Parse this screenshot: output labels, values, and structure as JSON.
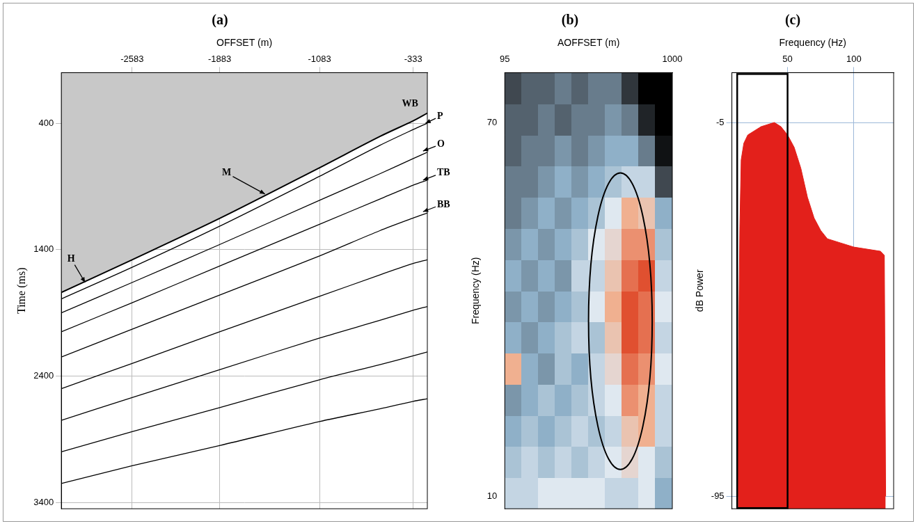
{
  "chart_data": [
    {
      "type": "line",
      "title": "(a)",
      "x_label": "OFFSET (m)",
      "y_label": "Time (ms)",
      "x": [
        -3150,
        -2583,
        -1883,
        -1083,
        -600,
        -333,
        -220
      ],
      "series": [
        {
          "values": [
            1739,
            1480,
            1153,
            752,
            505,
            381,
            320
          ]
        },
        {
          "values": [
            1790,
            1540,
            1215,
            820,
            575,
            450,
            400
          ]
        },
        {
          "values": [
            1900,
            1660,
            1360,
            1010,
            800,
            680,
            630
          ]
        },
        {
          "values": [
            2050,
            1820,
            1530,
            1200,
            1000,
            890,
            850
          ]
        },
        {
          "values": [
            2250,
            2030,
            1760,
            1450,
            1250,
            1150,
            1110
          ]
        },
        {
          "values": [
            2500,
            2300,
            2050,
            1770,
            1600,
            1510,
            1480
          ]
        },
        {
          "values": [
            2750,
            2570,
            2350,
            2100,
            1960,
            1880,
            1850
          ]
        },
        {
          "values": [
            3000,
            2840,
            2650,
            2430,
            2310,
            2240,
            2210
          ]
        },
        {
          "values": [
            3250,
            3110,
            2950,
            2760,
            2660,
            2600,
            2580
          ]
        }
      ],
      "color": "#000000",
      "xlim": [
        -3150,
        -220
      ],
      "xticks": [
        -2583,
        -1883,
        -1083,
        -333
      ],
      "ylim": [
        3450,
        0
      ],
      "yticks": [
        400,
        1400,
        2400,
        3400
      ],
      "grid": true,
      "annotations": [
        {
          "text": "WB",
          "x": -260,
          "y": 340
        },
        {
          "text": "P",
          "x": -240,
          "y": 400
        },
        {
          "text": "M",
          "x": -1520,
          "y": 960
        },
        {
          "text": "O",
          "x": -260,
          "y": 620
        },
        {
          "text": "TB",
          "x": -260,
          "y": 850
        },
        {
          "text": "BB",
          "x": -260,
          "y": 1100
        },
        {
          "text": "H",
          "x": -2960,
          "y": 1660
        }
      ]
    },
    {
      "type": "heatmap",
      "title": "(b)",
      "x_label": "AOFFSET (m)",
      "y_label": "Frequency (Hz)",
      "x_edges": [
        95,
        185.5,
        276,
        366.5,
        457,
        547.5,
        638,
        728.5,
        819,
        909.5,
        1000
      ],
      "y_edges": [
        8,
        13,
        18,
        23,
        28,
        33,
        38,
        43,
        48,
        53,
        58,
        63,
        68,
        73,
        78
      ],
      "cells": [
        [
          0.5,
          0.5,
          0.55,
          0.55,
          0.55,
          0.55,
          0.5,
          0.5,
          0.55,
          0.4
        ],
        [
          0.45,
          0.5,
          0.45,
          0.5,
          0.45,
          0.5,
          0.55,
          0.6,
          0.55,
          0.45
        ],
        [
          0.4,
          0.45,
          0.4,
          0.45,
          0.5,
          0.45,
          0.5,
          0.65,
          0.7,
          0.5
        ],
        [
          0.35,
          0.4,
          0.45,
          0.4,
          0.45,
          0.5,
          0.55,
          0.75,
          0.7,
          0.5
        ],
        [
          0.7,
          0.4,
          0.35,
          0.45,
          0.4,
          0.5,
          0.6,
          0.8,
          0.75,
          0.55
        ],
        [
          0.4,
          0.35,
          0.4,
          0.45,
          0.5,
          0.45,
          0.65,
          0.85,
          0.8,
          0.5
        ],
        [
          0.35,
          0.4,
          0.35,
          0.4,
          0.45,
          0.55,
          0.7,
          0.85,
          0.8,
          0.55
        ],
        [
          0.4,
          0.35,
          0.4,
          0.35,
          0.5,
          0.5,
          0.65,
          0.8,
          0.85,
          0.5
        ],
        [
          0.35,
          0.4,
          0.35,
          0.4,
          0.45,
          0.55,
          0.6,
          0.75,
          0.75,
          0.45
        ],
        [
          0.3,
          0.35,
          0.4,
          0.35,
          0.4,
          0.45,
          0.55,
          0.7,
          0.65,
          0.4
        ],
        [
          0.3,
          0.3,
          0.35,
          0.4,
          0.35,
          0.4,
          0.45,
          0.5,
          0.5,
          0.2
        ],
        [
          0.25,
          0.3,
          0.3,
          0.35,
          0.3,
          0.35,
          0.4,
          0.4,
          0.3,
          0.05
        ],
        [
          0.25,
          0.25,
          0.3,
          0.25,
          0.3,
          0.3,
          0.35,
          0.3,
          0.1,
          0.0
        ],
        [
          0.2,
          0.25,
          0.25,
          0.3,
          0.25,
          0.3,
          0.3,
          0.15,
          0.0,
          0.0
        ]
      ],
      "xlim": [
        95,
        1000
      ],
      "xticks": [
        95,
        1000
      ],
      "ylim": [
        8,
        78
      ],
      "yticks": [
        10,
        70
      ]
    },
    {
      "type": "area",
      "title": "(c)",
      "x_label": "Frequency (Hz)",
      "y_label": "dB Power",
      "x": [
        12.5,
        13,
        14,
        15,
        17,
        20,
        25,
        30,
        35,
        40,
        45,
        50,
        55,
        60,
        65,
        70,
        75,
        80,
        90,
        100,
        110,
        120,
        123,
        124
      ],
      "values": [
        -95,
        -60,
        -30,
        -14,
        -10,
        -8,
        -7,
        -6,
        -5.5,
        -5,
        -6,
        -8,
        -11,
        -16,
        -23,
        -28,
        -31,
        -33,
        -34,
        -35,
        -35.5,
        -36,
        -37,
        -95
      ],
      "color": "#e3201b",
      "xlim": [
        8,
        130
      ],
      "xticks": [
        50,
        100
      ],
      "ylim": [
        -98,
        7
      ],
      "yticks": [
        -95,
        -5
      ],
      "grid": true,
      "band": [
        12,
        50
      ]
    }
  ]
}
